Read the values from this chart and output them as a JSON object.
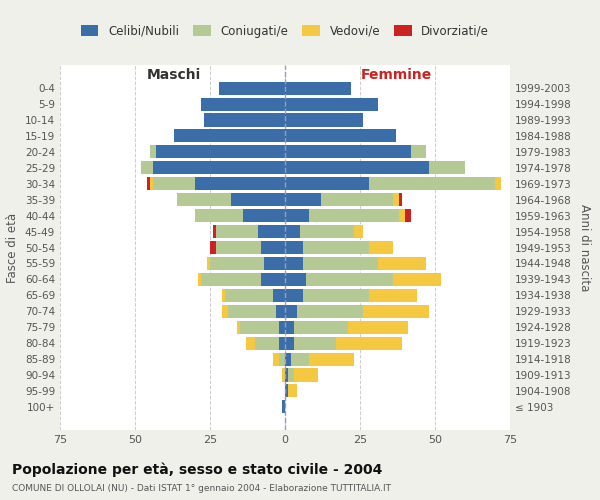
{
  "age_groups": [
    "0-4",
    "5-9",
    "10-14",
    "15-19",
    "20-24",
    "25-29",
    "30-34",
    "35-39",
    "40-44",
    "45-49",
    "50-54",
    "55-59",
    "60-64",
    "65-69",
    "70-74",
    "75-79",
    "80-84",
    "85-89",
    "90-94",
    "95-99",
    "100+"
  ],
  "birth_years": [
    "1999-2003",
    "1994-1998",
    "1989-1993",
    "1984-1988",
    "1979-1983",
    "1974-1978",
    "1969-1973",
    "1964-1968",
    "1959-1963",
    "1954-1958",
    "1949-1953",
    "1944-1948",
    "1939-1943",
    "1934-1938",
    "1929-1933",
    "1924-1928",
    "1919-1923",
    "1914-1918",
    "1909-1913",
    "1904-1908",
    "≤ 1903"
  ],
  "colors": {
    "celibi": "#3b6ea8",
    "coniugati": "#b5c994",
    "vedovi": "#f5c842",
    "divorziati": "#cc2222"
  },
  "male": {
    "celibi": [
      22,
      28,
      27,
      37,
      43,
      44,
      30,
      18,
      14,
      9,
      8,
      7,
      8,
      4,
      3,
      2,
      2,
      0,
      0,
      0,
      1
    ],
    "coniugati": [
      0,
      0,
      0,
      0,
      2,
      4,
      14,
      18,
      16,
      14,
      15,
      18,
      20,
      16,
      16,
      13,
      8,
      2,
      0,
      0,
      0
    ],
    "vedovi": [
      0,
      0,
      0,
      0,
      0,
      0,
      1,
      0,
      0,
      0,
      0,
      1,
      1,
      1,
      2,
      1,
      3,
      2,
      1,
      0,
      0
    ],
    "divorziati": [
      0,
      0,
      0,
      0,
      0,
      0,
      1,
      0,
      0,
      1,
      2,
      0,
      0,
      0,
      0,
      0,
      0,
      0,
      0,
      0,
      0
    ]
  },
  "female": {
    "celibi": [
      22,
      31,
      26,
      37,
      42,
      48,
      28,
      12,
      8,
      5,
      6,
      6,
      7,
      6,
      4,
      3,
      3,
      2,
      1,
      1,
      0
    ],
    "coniugati": [
      0,
      0,
      0,
      0,
      5,
      12,
      42,
      24,
      30,
      18,
      22,
      25,
      29,
      22,
      22,
      18,
      14,
      6,
      2,
      0,
      0
    ],
    "vedovi": [
      0,
      0,
      0,
      0,
      0,
      0,
      2,
      2,
      2,
      3,
      8,
      16,
      16,
      16,
      22,
      20,
      22,
      15,
      8,
      3,
      0
    ],
    "divorziati": [
      0,
      0,
      0,
      0,
      0,
      0,
      0,
      1,
      2,
      0,
      0,
      0,
      0,
      0,
      0,
      0,
      0,
      0,
      0,
      0,
      0
    ]
  },
  "title": "Popolazione per età, sesso e stato civile - 2004",
  "subtitle": "COMUNE DI OLLOLAI (NU) - Dati ISTAT 1° gennaio 2004 - Elaborazione TUTTITALIA.IT",
  "xlabel_left": "Maschi",
  "xlabel_right": "Femmine",
  "ylabel_left": "Fasce di età",
  "ylabel_right": "Anni di nascita",
  "xlim": 75,
  "legend_labels": [
    "Celibi/Nubili",
    "Coniugati/e",
    "Vedovi/e",
    "Divorziati/e"
  ],
  "bg_color": "#f0f0eb",
  "plot_bg": "#ffffff"
}
